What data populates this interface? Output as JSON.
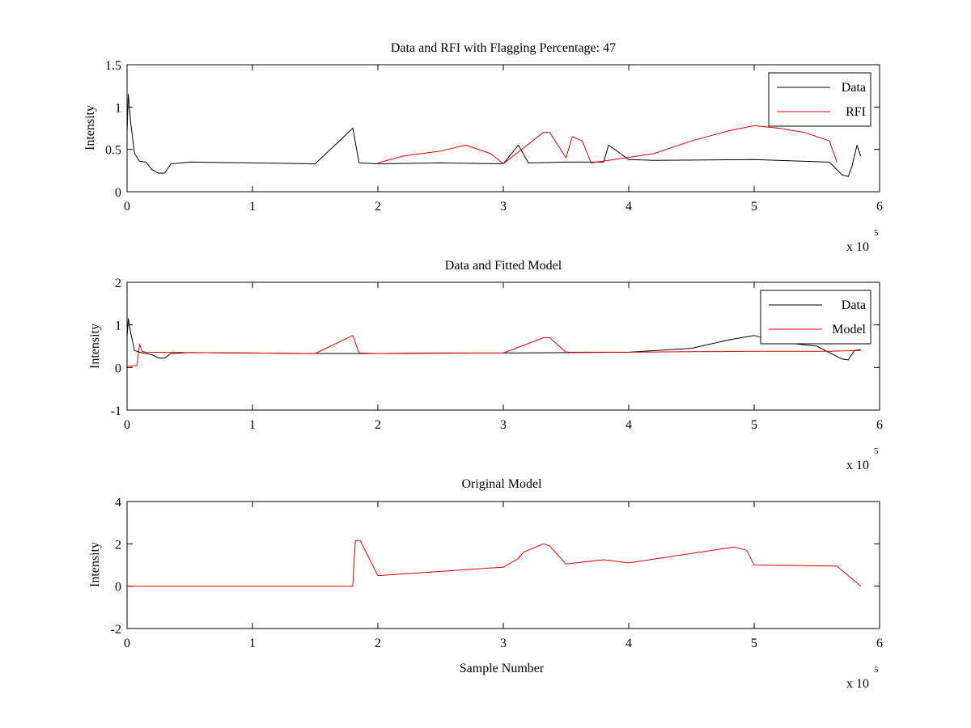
{
  "chart_data": [
    {
      "type": "line",
      "title": "Data and RFI with Flagging Percentage: 47",
      "xlabel": "",
      "ylabel": "Intensity",
      "xlim": [
        0,
        600000
      ],
      "ylim": [
        0,
        1.5
      ],
      "xticks": [
        "0",
        "1",
        "2",
        "3",
        "4",
        "5",
        "6"
      ],
      "yticks": [
        "0",
        "0.5",
        "1",
        "1.5"
      ],
      "x_exponent": "x 10",
      "x_exponent_power": "5",
      "legend": {
        "position": "top-right",
        "entries": [
          "Data",
          "RFI"
        ]
      },
      "series": [
        {
          "name": "Data",
          "color": "#000000",
          "x": [
            0,
            1000,
            3000,
            6000,
            10000,
            15000,
            20000,
            25000,
            30000,
            35000,
            50000,
            100000,
            150000,
            180000,
            185000,
            200000,
            250000,
            300000,
            312000,
            320000,
            350000,
            380000,
            384000,
            400000,
            420000,
            500000,
            560000,
            570000,
            575000,
            578000,
            582000,
            585000
          ],
          "y": [
            0.7,
            1.15,
            0.8,
            0.45,
            0.36,
            0.35,
            0.26,
            0.22,
            0.22,
            0.33,
            0.35,
            0.34,
            0.33,
            0.75,
            0.34,
            0.33,
            0.34,
            0.33,
            0.55,
            0.34,
            0.35,
            0.35,
            0.55,
            0.38,
            0.37,
            0.38,
            0.35,
            0.2,
            0.18,
            0.3,
            0.55,
            0.42
          ]
        },
        {
          "name": "RFI",
          "color": "#e00000",
          "x": [
            200000,
            220000,
            250000,
            270000,
            290000,
            300000,
            332000,
            337000,
            350000,
            355000,
            363000,
            370000,
            420000,
            450000,
            480000,
            500000,
            520000,
            540000,
            560000,
            566000
          ],
          "y": [
            0.34,
            0.42,
            0.48,
            0.55,
            0.45,
            0.33,
            0.7,
            0.7,
            0.4,
            0.65,
            0.6,
            0.34,
            0.45,
            0.6,
            0.72,
            0.78,
            0.75,
            0.7,
            0.6,
            0.35
          ]
        }
      ]
    },
    {
      "type": "line",
      "title": "Data and Fitted Model",
      "xlabel": "",
      "ylabel": "Intensity",
      "xlim": [
        0,
        600000
      ],
      "ylim": [
        -1,
        2
      ],
      "xticks": [
        "0",
        "1",
        "2",
        "3",
        "4",
        "5",
        "6"
      ],
      "yticks": [
        "-1",
        "0",
        "1",
        "2"
      ],
      "x_exponent": "x 10",
      "x_exponent_power": "5",
      "legend": {
        "position": "top-right",
        "entries": [
          "Data",
          "Model"
        ]
      },
      "series": [
        {
          "name": "Data",
          "color": "#000000",
          "x": [
            0,
            1000,
            3000,
            6000,
            10000,
            20000,
            25000,
            30000,
            35000,
            50000,
            100000,
            150000,
            200000,
            250000,
            300000,
            350000,
            400000,
            450000,
            480000,
            500000,
            520000,
            550000,
            570000,
            575000,
            580000,
            585000
          ],
          "y": [
            0.7,
            1.15,
            0.8,
            0.4,
            0.36,
            0.3,
            0.22,
            0.22,
            0.33,
            0.35,
            0.34,
            0.33,
            0.33,
            0.34,
            0.34,
            0.35,
            0.36,
            0.45,
            0.65,
            0.75,
            0.6,
            0.5,
            0.2,
            0.18,
            0.4,
            0.42
          ]
        },
        {
          "name": "Model",
          "color": "#e00000",
          "x": [
            0,
            8000,
            10000,
            12000,
            15000,
            50000,
            100000,
            150000,
            180000,
            185000,
            200000,
            300000,
            332000,
            337000,
            350000,
            400000,
            450000,
            500000,
            560000,
            585000
          ],
          "y": [
            0.02,
            0.05,
            0.55,
            0.38,
            0.36,
            0.35,
            0.34,
            0.33,
            0.75,
            0.34,
            0.33,
            0.34,
            0.7,
            0.7,
            0.36,
            0.36,
            0.37,
            0.38,
            0.38,
            0.4
          ]
        }
      ]
    },
    {
      "type": "line",
      "title": "Original Model",
      "xlabel": "Sample Number",
      "ylabel": "Intensity",
      "xlim": [
        0,
        600000
      ],
      "ylim": [
        -2,
        4
      ],
      "xticks": [
        "0",
        "1",
        "2",
        "3",
        "4",
        "5",
        "6"
      ],
      "yticks": [
        "-2",
        "0",
        "2",
        "4"
      ],
      "x_exponent": "x 10",
      "x_exponent_power": "5",
      "series": [
        {
          "name": "",
          "color": "#e00000",
          "x": [
            0,
            180000,
            182000,
            186000,
            200000,
            300000,
            312000,
            316000,
            332000,
            337000,
            350000,
            380000,
            400000,
            484000,
            494000,
            500000,
            566000,
            585000
          ],
          "y": [
            0,
            0,
            2.15,
            2.15,
            0.5,
            0.9,
            1.3,
            1.6,
            2.0,
            1.9,
            1.05,
            1.25,
            1.1,
            1.85,
            1.7,
            1.0,
            0.95,
            0
          ]
        }
      ]
    }
  ]
}
